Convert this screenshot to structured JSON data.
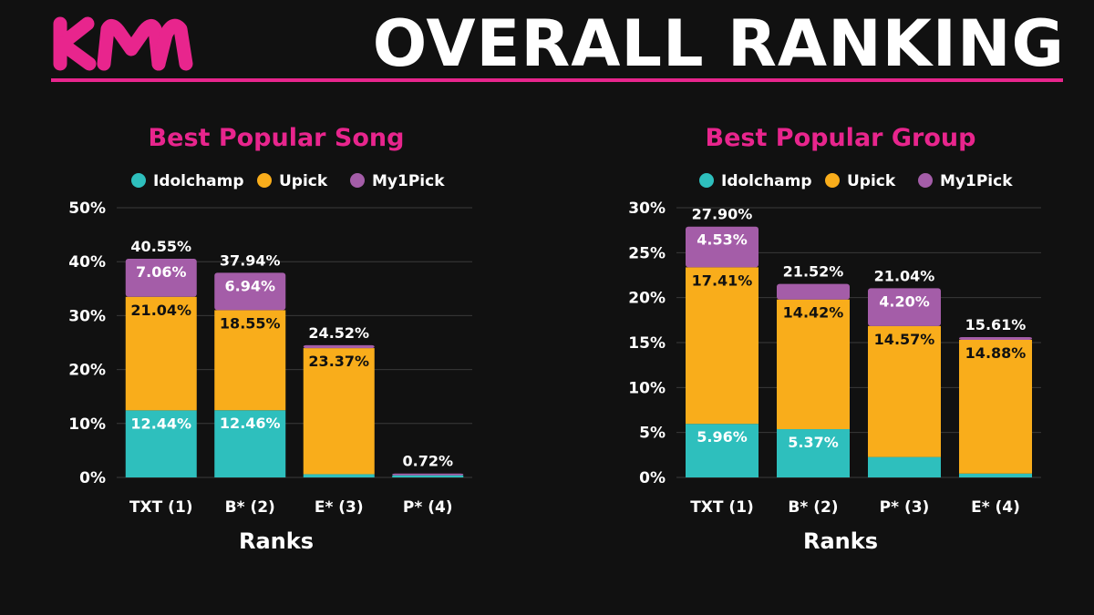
{
  "header": {
    "logo_text": "KM",
    "title": "OVERALL RANKING"
  },
  "colors": {
    "background": "#111111",
    "accent": "#e8258d",
    "grid": "#3a3a3a",
    "Idolchamp": "#2ebfbd",
    "Upick": "#f9ad1b",
    "My1Pick": "#a45da8"
  },
  "chart_data": [
    {
      "type": "bar",
      "stacked": true,
      "title": "Best Popular Song",
      "xlabel": "Ranks",
      "ylabel": "",
      "ylim": [
        0,
        50
      ],
      "yticks": [
        0,
        10,
        20,
        30,
        40,
        50
      ],
      "ytick_format": "%",
      "grid": true,
      "legend_position": "top",
      "categories": [
        "TXT (1)",
        "B* (2)",
        "E* (3)",
        "P* (4)"
      ],
      "series": [
        {
          "name": "Idolchamp",
          "values": [
            12.44,
            12.46,
            0.6,
            0.4
          ],
          "labels": [
            "12.44%",
            "12.46%",
            "",
            ""
          ]
        },
        {
          "name": "Upick",
          "values": [
            21.04,
            18.55,
            23.37,
            0.0
          ],
          "labels": [
            "21.04%",
            "18.55%",
            "23.37%",
            ""
          ]
        },
        {
          "name": "My1Pick",
          "values": [
            7.06,
            6.94,
            0.55,
            0.32
          ],
          "labels": [
            "7.06%",
            "6.94%",
            "",
            ""
          ]
        }
      ],
      "totals": [
        "40.55%",
        "37.94%",
        "24.52%",
        "0.72%"
      ]
    },
    {
      "type": "bar",
      "stacked": true,
      "title": "Best Popular Group",
      "xlabel": "Ranks",
      "ylabel": "",
      "ylim": [
        0,
        30
      ],
      "yticks": [
        0,
        5,
        10,
        15,
        20,
        25,
        30
      ],
      "ytick_format": "%",
      "grid": true,
      "legend_position": "top",
      "categories": [
        "TXT (1)",
        "B* (2)",
        "P* (3)",
        "E* (4)"
      ],
      "series": [
        {
          "name": "Idolchamp",
          "values": [
            5.96,
            5.37,
            2.27,
            0.43
          ],
          "labels": [
            "5.96%",
            "5.37%",
            "",
            ""
          ]
        },
        {
          "name": "Upick",
          "values": [
            17.41,
            14.42,
            14.57,
            14.88
          ],
          "labels": [
            "17.41%",
            "14.42%",
            "14.57%",
            "14.88%"
          ]
        },
        {
          "name": "My1Pick",
          "values": [
            4.53,
            1.73,
            4.2,
            0.3
          ],
          "labels": [
            "4.53%",
            "",
            "4.20%",
            ""
          ]
        }
      ],
      "totals": [
        "27.90%",
        "21.52%",
        "21.04%",
        "15.61%"
      ]
    }
  ]
}
